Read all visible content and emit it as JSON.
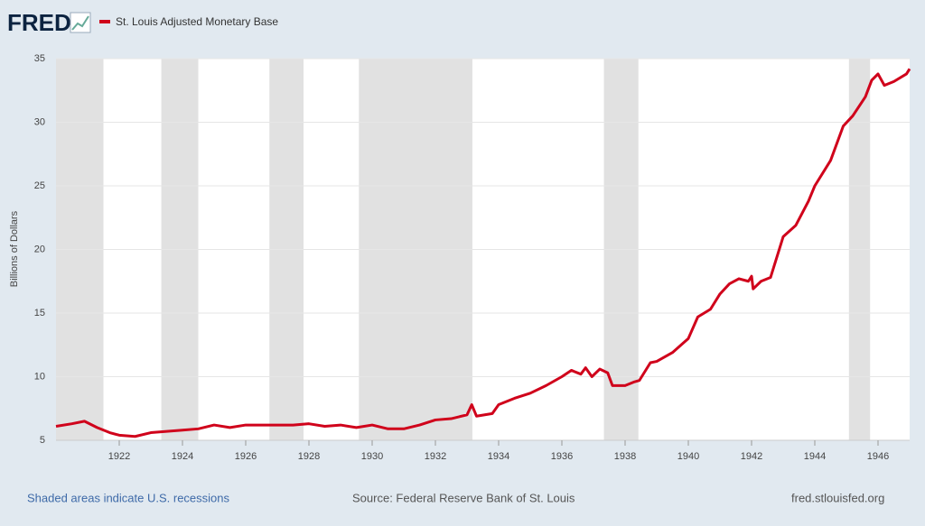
{
  "chart_data": {
    "type": "line",
    "logo": "FRED",
    "title": "St. Louis Adjusted Monetary Base",
    "y_label": "Billions of Dollars",
    "note": "Shaded areas indicate U.S. recessions",
    "source": "Source: Federal Reserve Bank of St. Louis",
    "site": "fred.stlouisfed.org",
    "xlim": [
      1920,
      1947
    ],
    "xticks": [
      1922,
      1924,
      1926,
      1928,
      1930,
      1932,
      1934,
      1936,
      1938,
      1940,
      1942,
      1944,
      1946
    ],
    "ylim": [
      5,
      35
    ],
    "yticks": [
      5,
      10,
      15,
      20,
      25,
      30,
      35
    ],
    "grid": true,
    "recession_color": "#e1e1e1",
    "recessions": [
      [
        1920.0,
        1921.5
      ],
      [
        1923.33,
        1924.5
      ],
      [
        1926.75,
        1927.83
      ],
      [
        1929.58,
        1933.17
      ],
      [
        1937.33,
        1938.42
      ],
      [
        1945.08,
        1945.75
      ]
    ],
    "series": [
      {
        "name": "St. Louis Adjusted Monetary Base",
        "color": "#d0021b",
        "x": [
          1920.0,
          1920.5,
          1920.9,
          1921.3,
          1921.7,
          1922.0,
          1922.5,
          1923.0,
          1923.5,
          1924.0,
          1924.5,
          1925.0,
          1925.5,
          1926.0,
          1926.5,
          1927.0,
          1927.5,
          1928.0,
          1928.5,
          1929.0,
          1929.5,
          1930.0,
          1930.5,
          1931.0,
          1931.5,
          1932.0,
          1932.5,
          1933.0,
          1933.15,
          1933.3,
          1933.8,
          1934.0,
          1934.5,
          1935.0,
          1935.5,
          1936.0,
          1936.3,
          1936.6,
          1936.75,
          1936.95,
          1937.2,
          1937.45,
          1937.6,
          1938.0,
          1938.3,
          1938.45,
          1938.8,
          1939.0,
          1939.5,
          1940.0,
          1940.3,
          1940.7,
          1941.0,
          1941.3,
          1941.6,
          1941.9,
          1942.0,
          1942.05,
          1942.3,
          1942.6,
          1943.0,
          1943.4,
          1943.8,
          1944.0,
          1944.5,
          1944.9,
          1945.2,
          1945.6,
          1945.8,
          1946.0,
          1946.2,
          1946.5,
          1946.9,
          1947.0
        ],
        "values": [
          6.1,
          6.3,
          6.5,
          6.0,
          5.6,
          5.4,
          5.3,
          5.6,
          5.7,
          5.8,
          5.9,
          6.2,
          6.0,
          6.2,
          6.2,
          6.2,
          6.2,
          6.3,
          6.1,
          6.2,
          6.0,
          6.2,
          5.9,
          5.9,
          6.2,
          6.6,
          6.7,
          7.0,
          7.8,
          6.9,
          7.1,
          7.8,
          8.3,
          8.7,
          9.3,
          10.0,
          10.5,
          10.2,
          10.7,
          10.0,
          10.6,
          10.3,
          9.3,
          9.3,
          9.6,
          9.7,
          11.1,
          11.2,
          11.9,
          13.0,
          14.7,
          15.3,
          16.5,
          17.3,
          17.7,
          17.5,
          17.9,
          16.9,
          17.5,
          17.8,
          21.0,
          21.9,
          23.8,
          25.0,
          27.0,
          29.7,
          30.5,
          32.0,
          33.3,
          33.8,
          32.9,
          33.2,
          33.8,
          34.2
        ]
      }
    ]
  }
}
